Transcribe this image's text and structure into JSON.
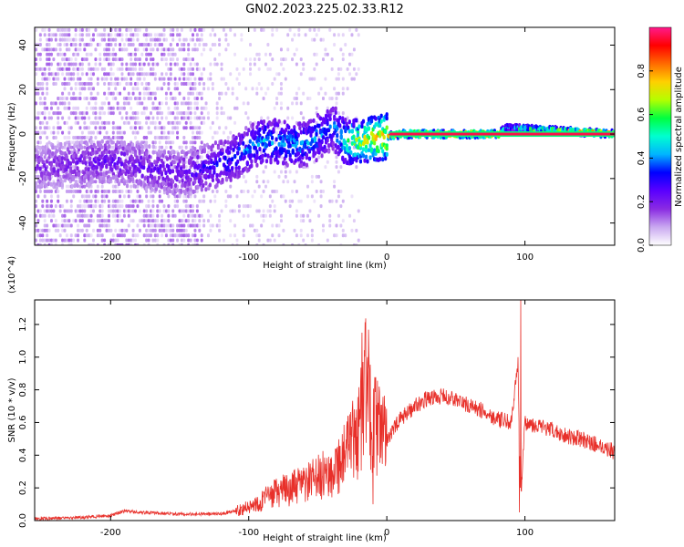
{
  "figure": {
    "title": "GN02.2023.225.02.33.R12"
  },
  "colors": {
    "snr_line": "#e8302a",
    "frame": "#000000",
    "colormap": [
      "#ffffff",
      "#c9a8f0",
      "#8a2be2",
      "#5a00ff",
      "#0000ff",
      "#00b4ff",
      "#00ffd0",
      "#00ff40",
      "#b4ff00",
      "#ffd000",
      "#ff6a00",
      "#ff0000",
      "#ff1a8c"
    ]
  },
  "chart_data": [
    {
      "type": "heatmap",
      "title": "",
      "xlabel": "Height of straight line (km)",
      "ylabel": "Frequency (Hz)",
      "xlim": [
        -255,
        165
      ],
      "ylim": [
        -50,
        48
      ],
      "xticks": [
        -200,
        -100,
        0,
        100
      ],
      "yticks": [
        -40,
        -20,
        0,
        20,
        40
      ],
      "colorbar": {
        "label": "Normalized spectral amplitude",
        "range": [
          0.0,
          1.0
        ],
        "ticks": [
          0.0,
          0.2,
          0.4,
          0.6,
          0.8
        ]
      },
      "ridge": {
        "description_points": [
          {
            "x": -255,
            "f": -15,
            "amp": 0.2
          },
          {
            "x": -200,
            "f": -12,
            "amp": 0.25
          },
          {
            "x": -150,
            "f": -18,
            "amp": 0.25
          },
          {
            "x": -120,
            "f": -13,
            "amp": 0.35
          },
          {
            "x": -90,
            "f": -3,
            "amp": 0.45
          },
          {
            "x": -60,
            "f": -5,
            "amp": 0.45
          },
          {
            "x": -40,
            "f": 3,
            "amp": 0.4
          },
          {
            "x": -30,
            "f": -4,
            "amp": 0.6
          },
          {
            "x": -10,
            "f": -2,
            "amp": 0.8
          },
          {
            "x": 10,
            "f": 0,
            "amp": 0.95
          },
          {
            "x": 80,
            "f": 0,
            "amp": 0.95
          },
          {
            "x": 85,
            "f": 3,
            "amp": 0.5
          },
          {
            "x": 165,
            "f": 0,
            "amp": 0.95
          }
        ]
      }
    },
    {
      "type": "line",
      "title": "",
      "xlabel": "Height of straight line (km)",
      "ylabel": "SNR (10 * v/v)",
      "y_multiplier": "(x10^4)",
      "xlim": [
        -255,
        165
      ],
      "ylim": [
        0.0,
        1.35
      ],
      "xticks": [
        -200,
        -100,
        0,
        100
      ],
      "yticks": [
        0.0,
        0.2,
        0.4,
        0.6,
        0.8,
        1.0,
        1.2
      ],
      "series": [
        {
          "x": [
            -255,
            -220,
            -200,
            -190,
            -180,
            -150,
            -120,
            -100,
            -80,
            -60,
            -40,
            -30,
            -20,
            -15,
            -10,
            0,
            10,
            20,
            30,
            40,
            50,
            60,
            70,
            80,
            90,
            95,
            97,
            100,
            110,
            120,
            130,
            140,
            150,
            160,
            165
          ],
          "y": [
            0.01,
            0.02,
            0.03,
            0.06,
            0.05,
            0.04,
            0.04,
            0.08,
            0.17,
            0.22,
            0.3,
            0.4,
            0.55,
            0.85,
            0.6,
            0.5,
            0.62,
            0.7,
            0.75,
            0.76,
            0.74,
            0.7,
            0.67,
            0.62,
            0.6,
            0.95,
            0.1,
            0.6,
            0.58,
            0.55,
            0.52,
            0.5,
            0.47,
            0.44,
            0.42
          ]
        }
      ],
      "spikes": [
        {
          "x": -18,
          "y": 1.15
        },
        {
          "x": -14,
          "y": 1.0
        },
        {
          "x": -10,
          "y": 0.1
        },
        {
          "x": 95,
          "y": 1.0
        },
        {
          "x": 97,
          "y": 1.35
        },
        {
          "x": 96,
          "y": 0.05
        }
      ]
    }
  ]
}
